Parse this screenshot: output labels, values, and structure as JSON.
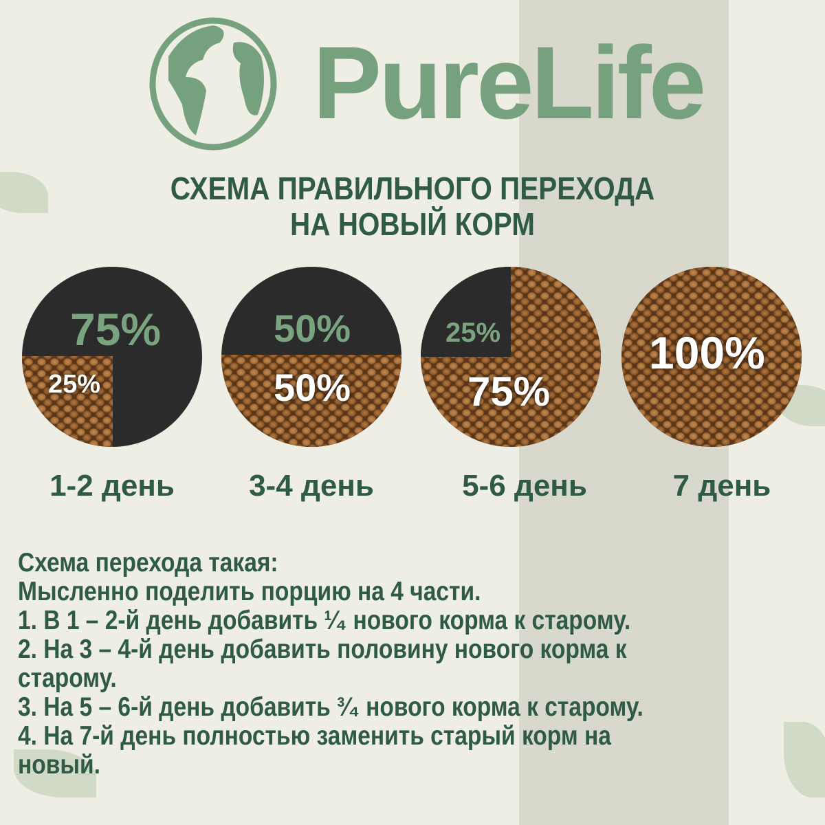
{
  "brand": {
    "name": "PureLife",
    "color": "#76a17e",
    "icon": "globe-icon"
  },
  "title": {
    "line1": "СХЕМА ПРАВИЛЬНОГО ПЕРЕХОДА",
    "line2": "НА НОВЫЙ КОРМ"
  },
  "stages": [
    {
      "old_pct": "75%",
      "new_pct": "25%",
      "day": "1-2 день",
      "new_fraction": 0.25
    },
    {
      "old_pct": "50%",
      "new_pct": "50%",
      "day": "3-4 день",
      "new_fraction": 0.5
    },
    {
      "old_pct": "25%",
      "new_pct": "75%",
      "day": "5-6 день",
      "new_fraction": 0.75
    },
    {
      "new_pct": "100%",
      "day": "7 день",
      "new_fraction": 1
    }
  ],
  "instructions": [
    "Схема перехода такая:",
    "Мысленно поделить порцию на 4 части.",
    "1. В 1 – 2-й день добавить ¹⁄₄ нового корма к старому.",
    "2. На 3 – 4-й день добавить половину нового корма к",
    "старому.",
    "3. На 5 – 6-й день добавить ³⁄₄ нового корма к старому.",
    "4. На 7-й день полностью заменить старый корм на",
    "новый."
  ],
  "colors": {
    "text": "#2f5a45",
    "old_food": "#2b2b2b",
    "accent": "#7aa480"
  }
}
